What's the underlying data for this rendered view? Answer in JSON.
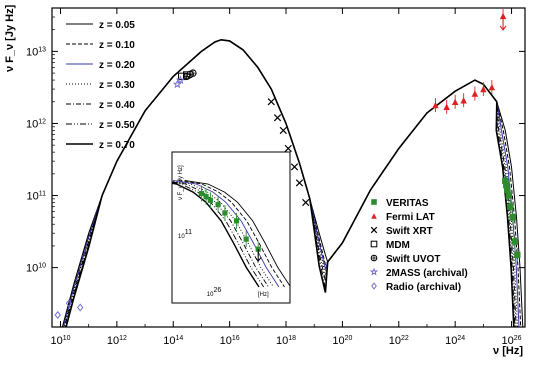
{
  "chart_data": {
    "type": "scatter",
    "xlabel": "ν [Hz]",
    "ylabel": "ν F_ν [Jy Hz]",
    "xscale": "log",
    "yscale": "log",
    "xlim": [
      5000000000.0,
      3e+26
    ],
    "ylim": [
      1500000000.0,
      40000000000000.0
    ],
    "x_ticks": [
      {
        "v": 10000000000.0,
        "b": "10",
        "e": "10"
      },
      {
        "v": 1000000000000.0,
        "b": "10",
        "e": "12"
      },
      {
        "v": 100000000000000.0,
        "b": "10",
        "e": "14"
      },
      {
        "v": 1e+16,
        "b": "10",
        "e": "16"
      },
      {
        "v": 1e+18,
        "b": "10",
        "e": "18"
      },
      {
        "v": 1e+20,
        "b": "10",
        "e": "20"
      },
      {
        "v": 1e+22,
        "b": "10",
        "e": "22"
      },
      {
        "v": 1e+24,
        "b": "10",
        "e": "24"
      },
      {
        "v": 1e+26,
        "b": "10",
        "e": "26"
      }
    ],
    "y_ticks": [
      {
        "v": 10000000000.0,
        "b": "10",
        "e": "10"
      },
      {
        "v": 100000000000.0,
        "b": "10",
        "e": "11"
      },
      {
        "v": 1000000000000.0,
        "b": "10",
        "e": "12"
      },
      {
        "v": 10000000000000.0,
        "b": "10",
        "e": "13"
      }
    ],
    "model_legend": [
      {
        "label": "z = 0.05",
        "dash": ""
      },
      {
        "label": "z = 0.10",
        "dash": "4,2"
      },
      {
        "label": "z = 0.20",
        "dash": "",
        "color": "#3a3aa8"
      },
      {
        "label": "z = 0.30",
        "dash": "1,2"
      },
      {
        "label": "z = 0.40",
        "dash": "5,2,1,2"
      },
      {
        "label": "z = 0.50",
        "dash": "6,2,1,2,1,2"
      },
      {
        "label": "z = 0.70",
        "dash": ""
      }
    ],
    "data_legend": [
      {
        "label": "VERITAS",
        "marker": "square",
        "color": "#2e8b2e"
      },
      {
        "label": "Fermi LAT",
        "marker": "triangle",
        "color": "#e02020"
      },
      {
        "label": "Swift XRT",
        "marker": "cross",
        "color": "#000000"
      },
      {
        "label": "MDM",
        "marker": "open-square",
        "color": "#000000"
      },
      {
        "label": "Swift UVOT",
        "marker": "circle-cross",
        "color": "#000000"
      },
      {
        "label": "2MASS (archival)",
        "marker": "star",
        "color": "#6a6ac8"
      },
      {
        "label": "Radio (archival)",
        "marker": "diamond",
        "color": "#7070d0"
      }
    ],
    "models": {
      "sync_rise": [
        [
          10000000000.0,
          1200000000.0
        ],
        [
          30000000000.0,
          6000000000.0
        ],
        [
          100000000000.0,
          30000000000.0
        ],
        [
          300000000000.0,
          100000000000.0
        ],
        [
          1000000000000.0,
          300000000000.0
        ],
        [
          10000000000000.0,
          1500000000000.0
        ],
        [
          100000000000000.0,
          4500000000000.0
        ],
        [
          1000000000000000.0,
          10000000000000.0
        ],
        [
          3000000000000000.0,
          13500000000000.0
        ],
        [
          5000000000000000.0,
          14500000000000.0
        ]
      ],
      "sync_peak": [
        [
          6000000000000000.0,
          14500000000000.0
        ],
        [
          1e+16,
          14000000000000.0
        ],
        [
          3e+16,
          10500000000000.0
        ],
        [
          1e+17,
          6000000000000.0
        ],
        [
          3e+17,
          3000000000000.0
        ],
        [
          1e+18,
          1000000000000.0
        ],
        [
          3e+18,
          280000000000.0
        ],
        [
          7e+18,
          90000000000.0
        ]
      ],
      "ic": [
        [
          3e+19,
          12000000000.0
        ],
        [
          1e+20,
          22000000000.0
        ],
        [
          1e+21,
          120000000000.0
        ],
        [
          1e+22,
          450000000000.0
        ],
        [
          1e+23,
          1400000000000.0
        ],
        [
          1e+24,
          2800000000000.0
        ],
        [
          5e+24,
          4000000000000.0
        ],
        [
          1e+25,
          3500000000000.0
        ],
        [
          3e+25,
          2000000000000.0
        ],
        [
          6e+25,
          800000000000.0
        ],
        [
          1e+26,
          250000000000.0
        ],
        [
          1.5e+26,
          50000000000.0
        ],
        [
          2e+26,
          10000000000.0
        ],
        [
          2.5e+26,
          1500000000.0
        ]
      ],
      "trough": {
        "z005": [
          [
            7e+18,
            90000000000.0
          ],
          [
            1.5e+19,
            30000000000.0
          ],
          [
            2.5e+19,
            15000000000.0
          ],
          [
            3e+19,
            12000000000.0
          ]
        ],
        "z010": [
          [
            7e+18,
            90000000000.0
          ],
          [
            1.5e+19,
            25000000000.0
          ],
          [
            2.5e+19,
            11000000000.0
          ],
          [
            3e+19,
            12000000000.0
          ]
        ],
        "z020": [
          [
            7e+18,
            90000000000.0
          ],
          [
            1.5e+19,
            22000000000.0
          ],
          [
            2.5e+19,
            9500000000.0
          ],
          [
            3e+19,
            12000000000.0
          ]
        ],
        "z030": [
          [
            7e+18,
            90000000000.0
          ],
          [
            1.5e+19,
            19000000000.0
          ],
          [
            2.5e+19,
            8000000000.0
          ],
          [
            3e+19,
            12000000000.0
          ]
        ],
        "z040": [
          [
            7e+18,
            90000000000.0
          ],
          [
            1.5e+19,
            16000000000.0
          ],
          [
            2.5e+19,
            6500000000.0
          ],
          [
            3e+19,
            12000000000.0
          ]
        ],
        "z050": [
          [
            7e+18,
            90000000000.0
          ],
          [
            1.5e+19,
            13500000000.0
          ],
          [
            2.5e+19,
            5200000000.0
          ],
          [
            3e+19,
            12000000000.0
          ]
        ],
        "z070": [
          [
            7e+18,
            90000000000.0
          ],
          [
            1.5e+19,
            10500000000.0
          ],
          [
            2.5e+19,
            4500000000.0
          ],
          [
            3e+19,
            12000000000.0
          ]
        ]
      }
    },
    "series": [
      {
        "name": "VERITAS",
        "x": [
          6e+25,
          6.5e+25,
          7e+25,
          8e+25,
          9e+25,
          1.1e+26,
          1.3e+26,
          1.6e+26
        ],
        "y": [
          160000000000.0,
          140000000000.0,
          120000000000.0,
          100000000000.0,
          70000000000.0,
          50000000000.0,
          23000000000.0,
          15000000000.0
        ]
      },
      {
        "name": "Fermi LAT",
        "x": [
          2e+23,
          5e+23,
          1e+24,
          2e+24,
          5e+24,
          1e+25,
          2e+25,
          5e+25
        ],
        "y": [
          1800000000000.0,
          1700000000000.0,
          2000000000000.0,
          2100000000000.0,
          2600000000000.0,
          3000000000000.0,
          3200000000000.0,
          31000000000000.0
        ]
      },
      {
        "name": "Swift XRT",
        "x": [
          3e+17,
          5e+17,
          8e+17,
          1.2e+18,
          2e+18,
          3e+18,
          5e+18
        ],
        "y": [
          2000000000000.0,
          1200000000000.0,
          800000000000.0,
          450000000000.0,
          250000000000.0,
          150000000000.0,
          80000000000.0
        ]
      },
      {
        "name": "MDM",
        "x": [
          200000000000000.0,
          300000000000000.0
        ],
        "y": [
          4500000000000.0,
          4700000000000.0
        ]
      },
      {
        "name": "Swift UVOT",
        "x": [
          300000000000000.0,
          400000000000000.0,
          500000000000000.0
        ],
        "y": [
          4500000000000.0,
          4800000000000.0,
          5000000000000.0
        ]
      },
      {
        "name": "2MASS (archival)",
        "x": [
          140000000000000.0,
          180000000000000.0
        ],
        "y": [
          3500000000000.0,
          4000000000000.0
        ]
      },
      {
        "name": "Radio (archival)",
        "x": [
          8000000000.0,
          20000000000.0,
          50000000000.0
        ],
        "y": [
          2200000000.0,
          3200000000.0,
          2800000000.0
        ]
      }
    ],
    "inset": {
      "ylabel": "ν F_ν [Jy Hz]",
      "xlabel": "[Hz]",
      "x_tick": {
        "b": "10",
        "e": "26"
      },
      "y_tick": {
        "b": "10",
        "e": "11"
      }
    }
  }
}
